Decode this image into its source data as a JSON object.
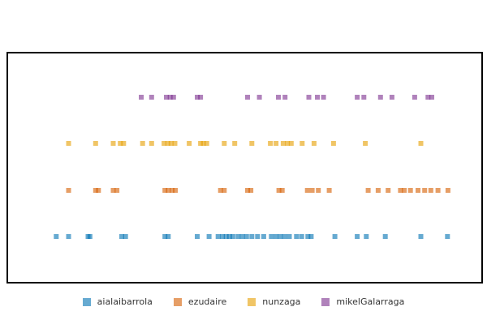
{
  "chart_data": {
    "type": "scatter",
    "title": "",
    "xlabel": "",
    "ylabel": "",
    "grid": false,
    "legend_position": "bottom",
    "x_range": [
      0,
      100
    ],
    "series": [
      {
        "name": "aialaibarrola",
        "color": "#0072B2",
        "x": [
          10.3,
          12.9,
          17.0,
          17.4,
          24.1,
          24.9,
          33.2,
          33.9,
          40.0,
          42.5,
          44.4,
          45.3,
          46.1,
          46.8,
          47.5,
          48.6,
          49.5,
          50.4,
          51.5,
          52.7,
          54.0,
          55.6,
          56.6,
          57.5,
          58.4,
          59.4,
          60.9,
          62.0,
          63.3,
          64.0,
          69.0,
          73.7,
          75.6,
          79.6,
          87.1,
          92.7
        ]
      },
      {
        "name": "ezudaire",
        "color": "#D55E00",
        "x": [
          12.9,
          18.6,
          19.2,
          22.3,
          23.1,
          33.2,
          33.9,
          34.7,
          35.4,
          44.9,
          45.7,
          50.6,
          51.3,
          57.2,
          57.9,
          63.2,
          64.2,
          65.5,
          67.8,
          76.0,
          78.1,
          80.2,
          82.8,
          83.6,
          84.9,
          86.5,
          87.9,
          89.2,
          90.7,
          92.8
        ]
      },
      {
        "name": "nunzaga",
        "color": "#E69F00",
        "x": [
          12.9,
          18.6,
          22.3,
          23.8,
          24.5,
          28.5,
          30.4,
          33.0,
          33.8,
          34.5,
          35.3,
          38.3,
          40.7,
          41.3,
          42.0,
          45.7,
          47.9,
          51.5,
          55.4,
          56.6,
          58.1,
          59.0,
          59.8,
          62.1,
          64.6,
          68.7,
          75.4,
          87.1
        ]
      },
      {
        "name": "mikelGalarraga",
        "color": "#7B2E8E",
        "x": [
          28.2,
          30.4,
          33.5,
          34.3,
          35.0,
          40.0,
          40.7,
          50.6,
          53.1,
          57.1,
          58.5,
          63.5,
          65.3,
          66.6,
          73.7,
          75.1,
          78.6,
          81.0,
          85.8,
          88.6,
          89.4
        ]
      }
    ]
  }
}
